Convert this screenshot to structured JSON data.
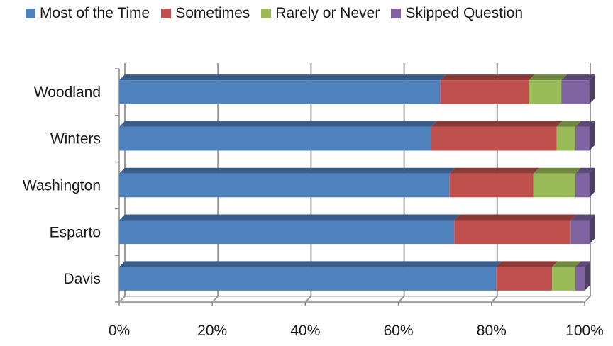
{
  "chart_data": {
    "type": "bar",
    "orientation": "horizontal",
    "stacked": "percent",
    "three_d": true,
    "categories": [
      "Woodland",
      "Winters",
      "Washington",
      "Esparto",
      "Davis"
    ],
    "series": [
      {
        "name": "Most of the Time",
        "color": "#4f81bd",
        "values": [
          69,
          67,
          71,
          72,
          81
        ]
      },
      {
        "name": "Sometimes",
        "color": "#c0504d",
        "values": [
          19,
          27,
          18,
          25,
          12
        ]
      },
      {
        "name": "Rarely or Never",
        "color": "#9bbb59",
        "values": [
          7,
          4,
          9,
          0,
          5
        ]
      },
      {
        "name": "Skipped Question",
        "color": "#8064a2",
        "values": [
          6,
          3,
          3,
          4,
          2
        ]
      }
    ],
    "xticks": [
      "0%",
      "20%",
      "40%",
      "60%",
      "80%",
      "100%"
    ],
    "xlim": [
      0,
      100
    ],
    "grid": true,
    "legend_position": "top",
    "title": "",
    "xlabel": "",
    "ylabel": ""
  }
}
